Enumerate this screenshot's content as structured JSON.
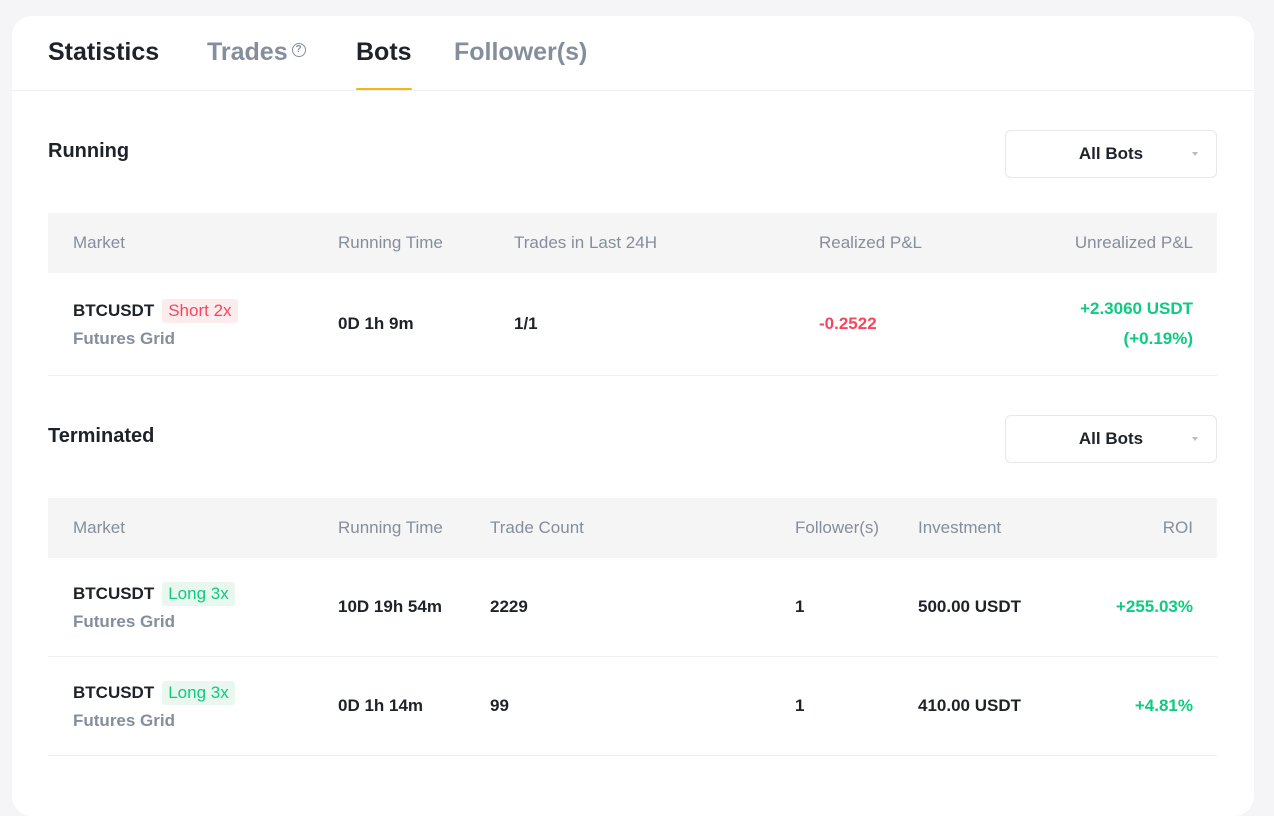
{
  "tabs": {
    "statistics": "Statistics",
    "trades": "Trades",
    "bots": "Bots",
    "followers": "Follower(s)",
    "active": "Bots"
  },
  "colors": {
    "accent": "#f0b90b",
    "negative": "#f6465d",
    "positive": "#0ecb81"
  },
  "running": {
    "title": "Running",
    "filter": "All Bots",
    "headers": [
      "Market",
      "Running Time",
      "Trades in Last 24H",
      "Realized P&L",
      "Unrealized P&L"
    ],
    "rows": [
      {
        "symbol": "BTCUSDT",
        "tag": "Short 2x",
        "type": "Futures Grid",
        "running_time": "0D 1h 9m",
        "trades_24h": "1/1",
        "realized_pl": "-0.2522",
        "unrealized_pl": "+2.3060 USDT",
        "unrealized_pct": "(+0.19%)"
      }
    ]
  },
  "terminated": {
    "title": "Terminated",
    "filter": "All Bots",
    "headers": [
      "Market",
      "Running Time",
      "Trade Count",
      "Follower(s)",
      "Investment",
      "ROI"
    ],
    "rows": [
      {
        "symbol": "BTCUSDT",
        "tag": "Long 3x",
        "type": "Futures Grid",
        "running_time": "10D 19h 54m",
        "trade_count": "2229",
        "followers": "1",
        "investment": "500.00 USDT",
        "roi": "+255.03%"
      },
      {
        "symbol": "BTCUSDT",
        "tag": "Long 3x",
        "type": "Futures Grid",
        "running_time": "0D 1h 14m",
        "trade_count": "99",
        "followers": "1",
        "investment": "410.00 USDT",
        "roi": "+4.81%"
      }
    ]
  }
}
